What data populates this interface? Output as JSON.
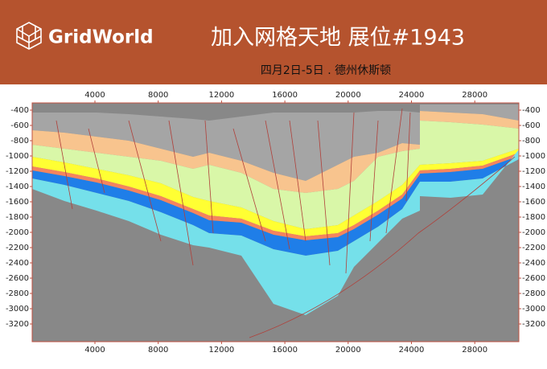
{
  "header": {
    "brand": "GridWorld",
    "title": "加入网格天地 展位#1943",
    "subtitle": "四月2日-5日 . 德州休斯顿"
  },
  "section": {
    "xticks": [
      4000,
      8000,
      12000,
      16000,
      20000,
      24000,
      28000
    ],
    "yticks": [
      -400,
      -600,
      -800,
      -1000,
      -1200,
      -1400,
      -1600,
      -1800,
      -2000,
      -2200,
      -2400,
      -2600,
      -2800,
      -3000,
      -3200
    ]
  }
}
